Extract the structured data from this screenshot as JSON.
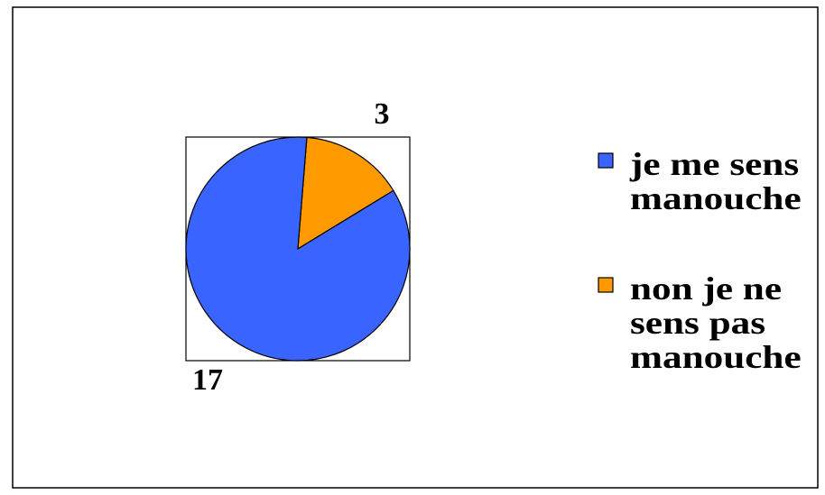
{
  "chart_data": {
    "type": "pie",
    "categories": [
      "je me sens manouche",
      "non je ne sens pas manouche"
    ],
    "values": [
      17,
      3
    ],
    "colors": [
      "#3a64ff",
      "#ff9900"
    ]
  }
}
